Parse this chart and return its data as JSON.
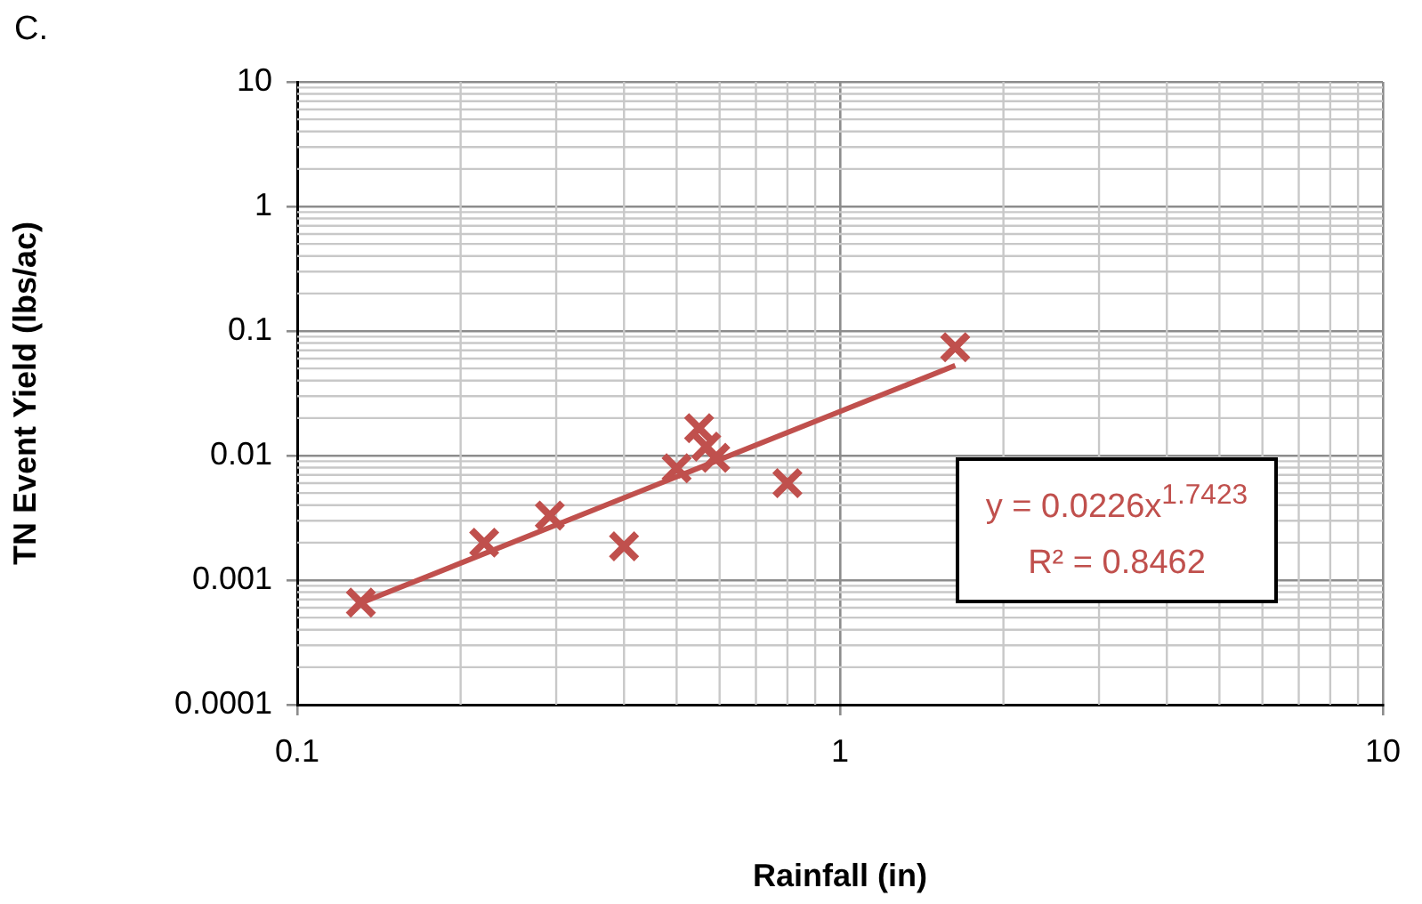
{
  "chart_data": {
    "type": "scatter",
    "title": "C.",
    "xlabel": "Rainfall (in)",
    "ylabel": "TN Event Yield (lbs/ac)",
    "log": "xy",
    "grid": true,
    "legend": false,
    "marker": "cross",
    "xlim": [
      0.1,
      10
    ],
    "xticks": [
      0.1,
      1,
      10
    ],
    "ylim": [
      0.0001,
      10
    ],
    "yticks": [
      0.0001,
      0.001,
      0.01,
      0.1,
      1,
      10
    ],
    "series": [
      {
        "color": "#c0504d",
        "x": [
          0.131,
          0.221,
          0.292,
          0.4,
          0.5,
          0.55,
          0.567,
          0.589,
          0.8,
          1.63
        ],
        "values": [
          0.00066,
          0.002,
          0.0033,
          0.00187,
          0.0079,
          0.0166,
          0.0118,
          0.0096,
          0.006,
          0.074
        ]
      },
      {
        "type": "line",
        "marker": "none",
        "color": "#c0504d",
        "x": [
          0.13,
          1.63
        ],
        "values": [
          0.000647,
          0.0529
        ]
      }
    ],
    "annotations": [
      "y = 0.0226x$^{1.7423}$",
      "R² = 0.8462"
    ]
  }
}
